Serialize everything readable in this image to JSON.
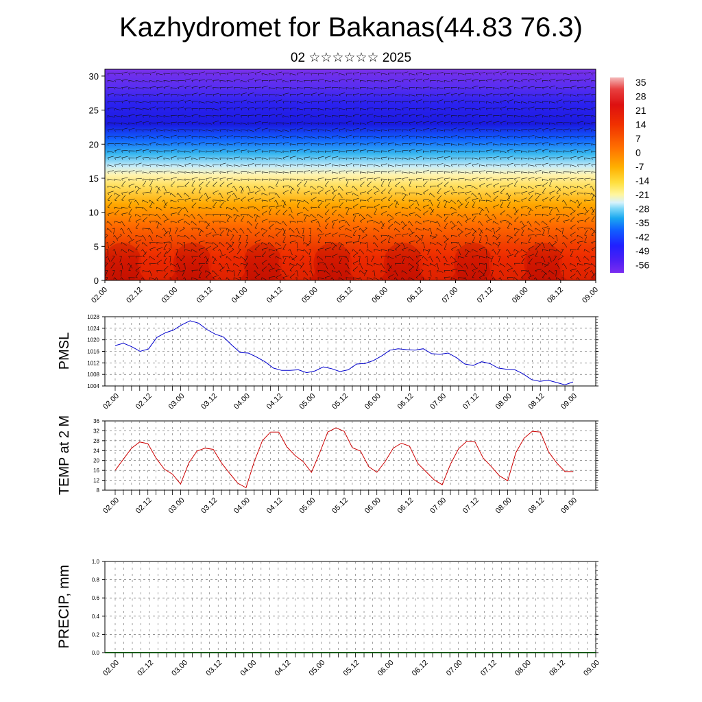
{
  "title": "Kazhydromet for Bakanas(44.83 76.3)",
  "subtitle": "02 ☆☆☆☆☆☆ 2025",
  "colorbar": {
    "labels": [
      "35",
      "28",
      "21",
      "14",
      "7",
      "0",
      "-7",
      "-14",
      "-21",
      "-28",
      "-35",
      "-42",
      "-49",
      "-56"
    ]
  },
  "chart_data": [
    {
      "type": "heatmap",
      "name": "upper-air cross-section",
      "x_ticks": [
        "02.00",
        "02.12",
        "03.00",
        "03.12",
        "04.00",
        "04.12",
        "05.00",
        "05.12",
        "06.00",
        "06.12",
        "07.00",
        "07.12",
        "08.00",
        "08.12",
        "09.00"
      ],
      "y_ticks": [
        0,
        5,
        10,
        15,
        20,
        25,
        30
      ],
      "ylim": [
        0,
        31
      ],
      "colorbar_range": [
        -56,
        35
      ],
      "note_levels": "temperature bands: ~30 near surface, ~15-0 at 13-16, ~-30 at 18-20, ~-56 at 22-26, ~-45 at 30",
      "overlay": "wind barbs"
    },
    {
      "type": "line",
      "ylabel": "PMSL",
      "color": "#0000cc",
      "ylim": [
        1004,
        1028
      ],
      "y_ticks": [
        1004,
        1008,
        1012,
        1016,
        1020,
        1024,
        1028
      ],
      "x_ticks": [
        "02.00",
        "02.12",
        "03.00",
        "03.12",
        "04.00",
        "04.12",
        "05.00",
        "05.12",
        "06.00",
        "06.12",
        "07.00",
        "07.12",
        "08.00",
        "08.12",
        "09.00"
      ],
      "values": [
        1018.0,
        1018.8,
        1017.6,
        1016.0,
        1016.8,
        1020.8,
        1022.4,
        1023.4,
        1025.2,
        1026.6,
        1025.8,
        1023.6,
        1022.0,
        1021.0,
        1018.2,
        1015.6,
        1015.4,
        1014.0,
        1012.4,
        1010.2,
        1009.4,
        1009.4,
        1009.6,
        1008.6,
        1009.2,
        1010.6,
        1010.0,
        1009.0,
        1009.6,
        1011.6,
        1011.8,
        1012.8,
        1014.4,
        1016.4,
        1016.9,
        1016.6,
        1016.4,
        1016.9,
        1015.2,
        1015.0,
        1015.4,
        1013.8,
        1011.6,
        1011.1,
        1012.4,
        1011.8,
        1010.2,
        1009.8,
        1009.6,
        1008.2,
        1006.2,
        1005.6,
        1006.0,
        1005.2,
        1004.4,
        1005.4
      ]
    },
    {
      "type": "line",
      "ylabel": "TEMP at 2 M",
      "color": "#cc0000",
      "ylim": [
        8,
        36
      ],
      "y_ticks": [
        8,
        12,
        16,
        20,
        24,
        28,
        32,
        36
      ],
      "x_ticks": [
        "02.00",
        "02.12",
        "03.00",
        "03.12",
        "04.00",
        "04.12",
        "05.00",
        "05.12",
        "06.00",
        "06.12",
        "07.00",
        "07.12",
        "08.00",
        "08.12",
        "09.00"
      ],
      "values": [
        16,
        20.5,
        25,
        27.5,
        26.8,
        21,
        16.5,
        14.5,
        10.5,
        19,
        23.8,
        25,
        24.5,
        19,
        14.8,
        10.8,
        9,
        19.5,
        28,
        31.5,
        31.5,
        25.5,
        22,
        19.5,
        15.2,
        23,
        31.5,
        33.2,
        31.8,
        25.2,
        23.8,
        17.5,
        15.2,
        19.5,
        25,
        27,
        25.8,
        18.8,
        15.5,
        12.2,
        10.2,
        18.5,
        24.8,
        27.8,
        27.5,
        21,
        17.5,
        13.8,
        11.8,
        23.2,
        29,
        31.8,
        31.5,
        23.5,
        19,
        15.5,
        15.5
      ]
    },
    {
      "type": "line",
      "ylabel": "PRECIP, mm",
      "ylim": [
        0,
        1.0
      ],
      "y_ticks": [
        "0.0",
        "0.2",
        "0.4",
        "0.6",
        "0.8",
        "1.0"
      ],
      "x_ticks": [
        "02.00",
        "02.12",
        "03.00",
        "03.12",
        "04.00",
        "04.12",
        "05.00",
        "05.12",
        "06.00",
        "06.12",
        "07.00",
        "07.12",
        "08.00",
        "08.12",
        "09.00"
      ],
      "values": []
    }
  ]
}
